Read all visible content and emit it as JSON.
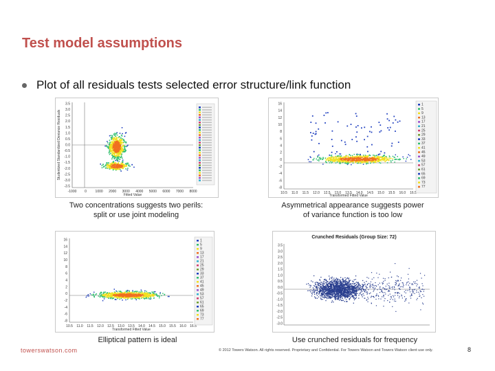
{
  "slide": {
    "title": "Test model assumptions",
    "bullet": "Plot of all residuals tests selected error structure/link function"
  },
  "plots": [
    {
      "name": "plot-two-concentrations",
      "caption_lines": [
        "Two concentrations suggests two perils:",
        "split or use joint modeling"
      ],
      "xlabel": "Fitted Value",
      "ylabel": "Studentized Standardized Deviance Residuals",
      "x_ticks": [
        "-1000",
        "0",
        "1000",
        "2000",
        "3000",
        "4000",
        "5000",
        "6000",
        "7000",
        "8000"
      ],
      "y_ticks": [
        "3.5",
        "3.0",
        "2.5",
        "2.0",
        "1.5",
        "1.0",
        "0.5",
        "0.0",
        "-0.5",
        "-1.0",
        "-1.5",
        "-2.0",
        "-2.5",
        "-3.0",
        "-3.5"
      ],
      "legend_entries": 30
    },
    {
      "name": "plot-asymmetrical",
      "caption_lines": [
        "Asymmetrical appearance suggests power",
        "of variance function is too low"
      ],
      "xlabel": "Transformed Fitted Value",
      "x_ticks": [
        "10.5",
        "11.0",
        "11.5",
        "12.0",
        "12.5",
        "13.0",
        "13.5",
        "14.0",
        "14.5",
        "15.0",
        "15.5",
        "16.0",
        "16.5"
      ],
      "y_ticks": [
        "16",
        "14",
        "12",
        "10",
        "8",
        "6",
        "4",
        "2",
        "0",
        "-2",
        "-4",
        "-6",
        "-8"
      ],
      "legend_labels": [
        "1",
        "5",
        "9",
        "13",
        "17",
        "21",
        "25",
        "29",
        "33",
        "37",
        "41",
        "45",
        "49",
        "53",
        "57",
        "61",
        "65",
        "69",
        "73",
        "77"
      ]
    },
    {
      "name": "plot-elliptical",
      "caption_lines": [
        "Elliptical pattern is ideal"
      ],
      "xlabel": "Transformed Fitted Value",
      "x_ticks": [
        "10.5",
        "11.0",
        "11.5",
        "12.0",
        "12.5",
        "13.0",
        "13.5",
        "14.0",
        "14.5",
        "15.0",
        "15.5",
        "16.0",
        "16.5"
      ],
      "y_ticks": [
        "16",
        "14",
        "12",
        "10",
        "8",
        "6",
        "4",
        "2",
        "0",
        "-2",
        "-4",
        "-6",
        "-8"
      ],
      "legend_labels": [
        "1",
        "5",
        "9",
        "13",
        "17",
        "21",
        "25",
        "29",
        "33",
        "37",
        "41",
        "45",
        "49",
        "53",
        "57",
        "61",
        "65",
        "69",
        "73",
        "77"
      ]
    },
    {
      "name": "plot-crunched",
      "caption_lines": [
        "Use crunched residuals for frequency"
      ],
      "plot_title": "Crunched Residuals (Group Size: 72)",
      "y_ticks": [
        "3.5",
        "3.0",
        "2.5",
        "2.0",
        "1.5",
        "1.0",
        "0.5",
        "0.0",
        "-0.5",
        "-1.0",
        "-1.5",
        "-2.0",
        "-2.5",
        "-3.0"
      ]
    }
  ],
  "footer": {
    "site": "towerswatson.com",
    "copyright": "© 2012 Towers Watson. All rights reserved. Proprietary and Confidential. For Towers Watson and Towers Watson client use only.",
    "page": "8"
  },
  "colors": {
    "title": "#c0504d",
    "density_low": "#1f3fbf",
    "density_mid": "#2fbf6f",
    "density_high": "#f0e020",
    "density_peak": "#f07020",
    "crunched": "#2a3f8f"
  }
}
